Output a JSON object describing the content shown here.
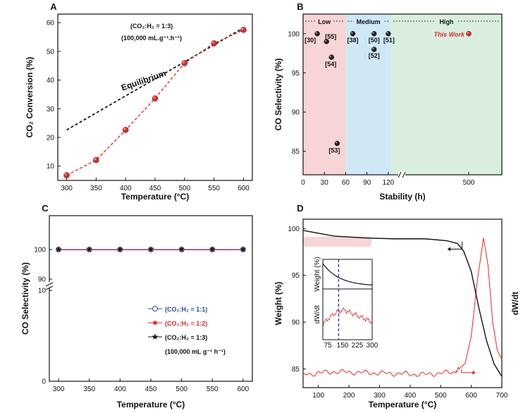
{
  "colors": {
    "red": "#e8262b",
    "blue": "#2b47a8",
    "black": "#111111",
    "low": "#f7d4d6",
    "medium": "#cfe8f6",
    "high": "#d9eedd",
    "dashblue": "#1f3fbf"
  },
  "chart_data": [
    {
      "panel": "A",
      "type": "line",
      "x": [
        300,
        350,
        400,
        450,
        500,
        550,
        600
      ],
      "series": [
        {
          "name": "CO2 Conversion",
          "values": [
            6.8,
            12.1,
            22.6,
            33.6,
            45.9,
            52.8,
            57.5
          ]
        },
        {
          "name": "Equilibrium",
          "x": [
            300,
            600
          ],
          "values": [
            22.6,
            58.2
          ]
        }
      ],
      "annotation_equilibrium": "Equilibrium",
      "cond_ratio": "(CO₂:H₂ = 1:3)",
      "cond_flow": "(100,000 mL.g⁻¹.h⁻¹)",
      "xlabel": "Temperature (°C)",
      "ylabel": "CO₂ Conversion (%)",
      "xlim": [
        285,
        615
      ],
      "ylim": [
        5,
        63
      ],
      "xticks": [
        "300",
        "350",
        "400",
        "450",
        "500",
        "550",
        "600"
      ],
      "yticks": [
        "10",
        "20",
        "30",
        "40",
        "50",
        "60"
      ]
    },
    {
      "panel": "B",
      "type": "scatter",
      "regions": [
        {
          "label": "Low"
        },
        {
          "label": "Medium"
        },
        {
          "label": "High"
        }
      ],
      "points": [
        {
          "label": "[30]",
          "x": 20,
          "y": 100
        },
        {
          "label": "[55]",
          "x": 33,
          "y": 99
        },
        {
          "label": "[54]",
          "x": 40,
          "y": 97
        },
        {
          "label": "[53]",
          "x": 48,
          "y": 86
        },
        {
          "label": "[38]",
          "x": 70,
          "y": 100
        },
        {
          "label": "[50]",
          "x": 100,
          "y": 100
        },
        {
          "label": "[52]",
          "x": 100,
          "y": 98
        },
        {
          "label": "[51]",
          "x": 120,
          "y": 100
        }
      ],
      "this_work": {
        "label": "This Work",
        "x": 500,
        "y": 100
      },
      "xlabel": "Stability (h)",
      "ylabel": "CO Selectivity (%)",
      "xticks": [
        "0",
        "30",
        "60",
        "90",
        "120",
        "500"
      ],
      "yticks": [
        "85",
        "90",
        "95",
        "100"
      ],
      "ylim": [
        82,
        102.5
      ]
    },
    {
      "panel": "C",
      "type": "line",
      "x": [
        300,
        350,
        400,
        450,
        500,
        550,
        600
      ],
      "series": [
        {
          "name": "(CO₂:H₂ = 1:1)",
          "values": [
            100,
            100,
            100,
            100,
            100,
            100,
            100
          ]
        },
        {
          "name": "(CO₂:H₂ = 1:2)",
          "values": [
            100,
            100,
            100,
            100,
            100,
            100,
            100
          ]
        },
        {
          "name": "(CO₂:H₂ = 1:3)",
          "values": [
            100,
            100,
            100,
            100,
            100,
            100,
            100
          ]
        }
      ],
      "flow_note": "(100,000 mL g⁻¹ h⁻¹)",
      "xlabel": "Temperature (°C)",
      "ylabel": "CO Selectivity (%)",
      "xticks": [
        "300",
        "350",
        "400",
        "450",
        "500",
        "550",
        "600"
      ],
      "yticks_lower": [
        "0",
        "10"
      ],
      "yticks_upper": [
        "90",
        "100"
      ]
    },
    {
      "panel": "D",
      "type": "line",
      "weight_curve": {
        "x": [
          50,
          150,
          250,
          350,
          450,
          520,
          555,
          575,
          600,
          625,
          650,
          675,
          700
        ],
        "y": [
          99.8,
          99.2,
          99.0,
          98.9,
          98.9,
          98.7,
          98.4,
          97.6,
          95.4,
          91.5,
          88.0,
          85.5,
          84.2
        ]
      },
      "dwdt_curve": {
        "x": [
          50,
          150,
          250,
          350,
          450,
          550,
          580,
          600,
          620,
          640,
          655,
          670,
          685,
          700
        ],
        "y": [
          84.4,
          84.7,
          84.6,
          84.5,
          84.4,
          84.7,
          85.6,
          88.5,
          94.5,
          99.0,
          96.0,
          90.0,
          87.0,
          86.0
        ]
      },
      "xlabel": "Temperature (°C)",
      "ylabel": "Weight (%)",
      "y2label": "dW/dt",
      "xticks": [
        "100",
        "200",
        "300",
        "400",
        "500",
        "600",
        "700"
      ],
      "yticks": [
        "85",
        "90",
        "95",
        "100"
      ],
      "xlim": [
        50,
        700
      ],
      "ylim": [
        83,
        101
      ],
      "inset": {
        "ylabel_top": "Weight (%)",
        "ylabel_bottom": "dW/dt",
        "xticks": [
          "75",
          "150",
          "225",
          "300"
        ],
        "dashed_x": 130
      }
    }
  ]
}
